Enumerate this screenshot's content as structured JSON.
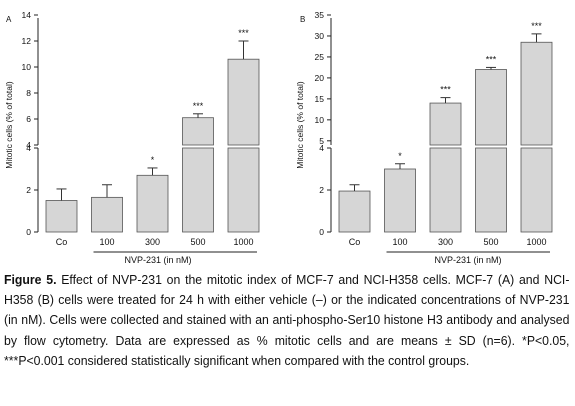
{
  "chart_data": [
    {
      "type": "bar",
      "panel_label": "A",
      "categories": [
        "Co",
        "100",
        "300",
        "500",
        "1000"
      ],
      "values": [
        1.5,
        1.65,
        2.7,
        6.1,
        10.6
      ],
      "errors": [
        0.55,
        0.6,
        0.35,
        0.3,
        1.4
      ],
      "significance": [
        "",
        "",
        "*",
        "***",
        "***"
      ],
      "xlabel": "NVP-231 (in nM)",
      "ylabel": "Mitotic cells (% of total)",
      "axis_break": true,
      "lower_range": [
        0,
        4
      ],
      "upper_range": [
        4,
        14
      ],
      "lower_ticks": [
        "0",
        "2",
        "4"
      ],
      "upper_ticks": [
        "4",
        "6",
        "8",
        "10",
        "12",
        "14"
      ],
      "bar_color": "#d6d6d6",
      "grid": false
    },
    {
      "type": "bar",
      "panel_label": "B",
      "categories": [
        "Co",
        "100",
        "300",
        "500",
        "1000"
      ],
      "values": [
        1.95,
        3.0,
        14.0,
        22.0,
        28.5
      ],
      "errors": [
        0.3,
        0.25,
        1.3,
        0.5,
        2.0
      ],
      "significance": [
        "",
        "*",
        "***",
        "***",
        "***"
      ],
      "xlabel": "NVP-231 (in nM)",
      "ylabel": "Mitotic cells (% of total)",
      "axis_break": true,
      "lower_range": [
        0,
        4
      ],
      "upper_range": [
        4,
        35
      ],
      "lower_ticks": [
        "0",
        "2",
        "4"
      ],
      "upper_ticks": [
        "5",
        "10",
        "15",
        "20",
        "25",
        "30",
        "35"
      ],
      "bar_color": "#d6d6d6",
      "grid": false
    }
  ],
  "caption": {
    "figure_label": "Figure 5.",
    "text": " Effect of NVP-231 on the mitotic index of MCF-7 and NCI-H358 cells. MCF-7 (A) and NCI-H358 (B) cells were treated for 24 h with either vehicle (–) or the indicated concentrations of NVP-231 (in nM). Cells were collected and stained with an anti-phospho-Ser10 histone H3 antibody and analysed by flow cytometry. Data are expressed as % mitotic cells and are means ± SD (n=6). *P<0.05, ***P<0.001 considered statistically significant when compared with the control groups."
  }
}
